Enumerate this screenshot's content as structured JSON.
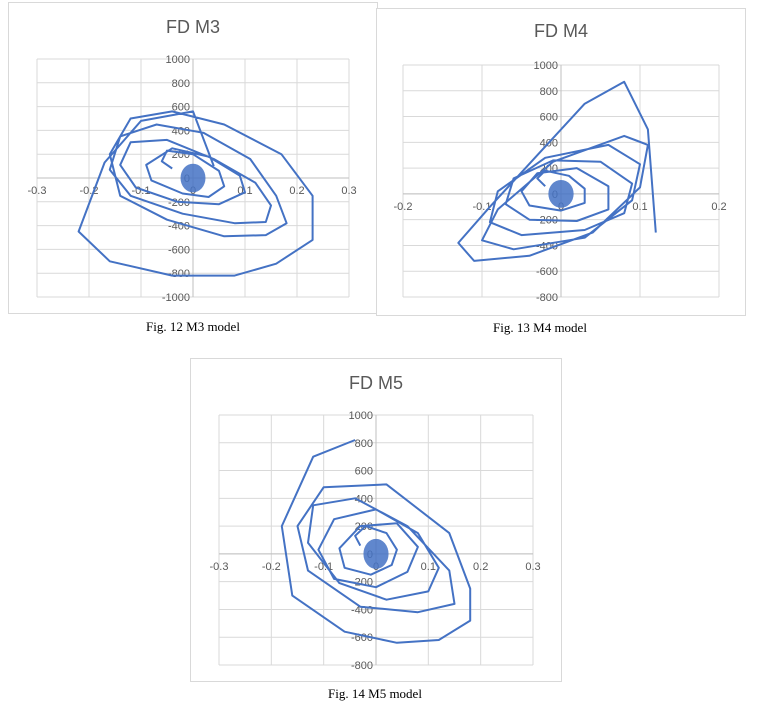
{
  "colors": {
    "series": "#4472c4",
    "grid": "#d9d9d9",
    "axis": "#bfbfbf",
    "text": "#595959"
  },
  "captions": {
    "fig12": "Fig. 12 M3 model",
    "fig13": "Fig. 13 M4 model",
    "fig14": "Fig. 14 M5 model"
  },
  "chart_data": [
    {
      "type": "scatter",
      "title": "FD M3",
      "xlim": [
        -0.3,
        0.3
      ],
      "ylim": [
        -1000,
        1000
      ],
      "x_ticks": [
        "-0.3",
        "-0.2",
        "-0.1",
        "0",
        "0.1",
        "0.2",
        "0.3"
      ],
      "y_ticks": [
        "1000",
        "800",
        "600",
        "400",
        "200",
        "0",
        "-200",
        "-400",
        "-600",
        "-800",
        "-1000"
      ],
      "grid": true,
      "x": [
        -0.04,
        -0.06,
        -0.05,
        0.0,
        0.05,
        0.06,
        0.03,
        -0.02,
        -0.08,
        -0.09,
        -0.04,
        0.03,
        0.09,
        0.1,
        0.05,
        -0.03,
        -0.11,
        -0.14,
        -0.12,
        -0.05,
        0.04,
        0.12,
        0.15,
        0.14,
        0.08,
        -0.02,
        -0.12,
        -0.16,
        -0.14,
        -0.07,
        0.02,
        0.11,
        0.16,
        0.18,
        0.14,
        0.06,
        -0.05,
        -0.14,
        -0.16,
        -0.12,
        -0.04,
        0.06,
        0.17,
        0.23,
        0.23,
        0.16,
        0.08,
        -0.04,
        -0.16,
        -0.22,
        -0.17,
        -0.1,
        0.0,
        0.04
      ],
      "y": [
        80,
        140,
        230,
        200,
        60,
        -70,
        -160,
        -130,
        -20,
        110,
        250,
        180,
        20,
        -120,
        -220,
        -200,
        -80,
        110,
        300,
        320,
        160,
        -40,
        -230,
        -370,
        -380,
        -300,
        -150,
        70,
        350,
        450,
        380,
        160,
        -150,
        -380,
        -480,
        -490,
        -350,
        -150,
        200,
        500,
        560,
        450,
        200,
        -150,
        -520,
        -720,
        -820,
        -820,
        -700,
        -450,
        130,
        480,
        560,
        100
      ]
    },
    {
      "type": "scatter",
      "title": "FD M4",
      "xlim": [
        -0.2,
        0.2
      ],
      "ylim": [
        -800,
        1000
      ],
      "x_ticks": [
        "-0.2",
        "-0.1",
        "0",
        "0.1",
        "0.2"
      ],
      "y_ticks": [
        "1000",
        "800",
        "600",
        "400",
        "200",
        "0",
        "-200",
        "-400",
        "-600",
        "-800"
      ],
      "grid": true,
      "x": [
        -0.02,
        -0.03,
        -0.02,
        0.01,
        0.03,
        0.03,
        0.0,
        -0.04,
        -0.05,
        -0.03,
        0.02,
        0.06,
        0.06,
        0.02,
        -0.04,
        -0.07,
        -0.06,
        -0.01,
        0.05,
        0.09,
        0.08,
        0.03,
        -0.05,
        -0.09,
        -0.08,
        -0.02,
        0.06,
        0.1,
        0.09,
        0.03,
        -0.06,
        -0.1,
        -0.08,
        -0.01,
        0.08,
        0.11,
        0.1,
        0.04,
        -0.04,
        -0.11,
        -0.13,
        -0.09,
        -0.03,
        0.03,
        0.08,
        0.11,
        0.12
      ],
      "y": [
        60,
        120,
        180,
        140,
        40,
        -70,
        -130,
        -90,
        20,
        160,
        200,
        60,
        -120,
        -210,
        -200,
        -80,
        120,
        260,
        250,
        80,
        -150,
        -280,
        -320,
        -220,
        20,
        280,
        380,
        230,
        -50,
        -340,
        -430,
        -360,
        -120,
        250,
        450,
        380,
        50,
        -300,
        -480,
        -520,
        -380,
        -100,
        300,
        700,
        870,
        500,
        -300
      ]
    },
    {
      "type": "scatter",
      "title": "FD M5",
      "xlim": [
        -0.3,
        0.3
      ],
      "ylim": [
        -800,
        1000
      ],
      "x_ticks": [
        "-0.3",
        "-0.2",
        "-0.1",
        "0",
        "0.1",
        "0.2",
        "0.3"
      ],
      "y_ticks": [
        "1000",
        "800",
        "600",
        "400",
        "200",
        "0",
        "-200",
        "-400",
        "-600",
        "-800"
      ],
      "grid": true,
      "x": [
        -0.03,
        -0.04,
        -0.02,
        0.02,
        0.04,
        0.03,
        -0.01,
        -0.06,
        -0.07,
        -0.03,
        0.04,
        0.08,
        0.06,
        0.0,
        -0.08,
        -0.11,
        -0.08,
        0.0,
        0.08,
        0.12,
        0.1,
        0.02,
        -0.07,
        -0.13,
        -0.12,
        -0.04,
        0.06,
        0.14,
        0.15,
        0.08,
        -0.03,
        -0.13,
        -0.15,
        -0.1,
        0.02,
        0.14,
        0.18,
        0.18,
        0.12,
        0.04,
        -0.06,
        -0.16,
        -0.18,
        -0.12,
        -0.04
      ],
      "y": [
        60,
        130,
        200,
        150,
        30,
        -80,
        -150,
        -100,
        40,
        200,
        220,
        50,
        -130,
        -240,
        -180,
        30,
        250,
        320,
        150,
        -100,
        -270,
        -330,
        -210,
        80,
        350,
        400,
        200,
        -120,
        -360,
        -420,
        -380,
        -120,
        200,
        480,
        500,
        150,
        -250,
        -480,
        -620,
        -640,
        -560,
        -300,
        200,
        700,
        820
      ]
    }
  ]
}
